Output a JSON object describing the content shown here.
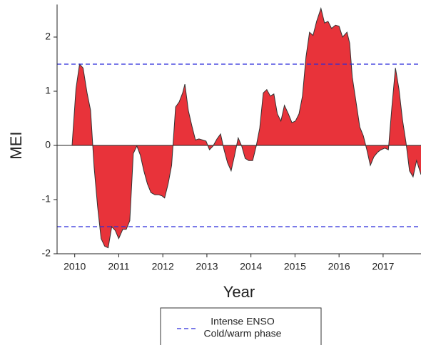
{
  "chart_data": {
    "type": "area",
    "y_label": "MEI",
    "x_label": "Year",
    "xlim": [
      2009.6,
      2017.86
    ],
    "ylim": [
      -2,
      2.6
    ],
    "xticks": [
      2010,
      2011,
      2012,
      2013,
      2014,
      2015,
      2016,
      2017
    ],
    "yticks": [
      -2,
      -1,
      0,
      1,
      2
    ],
    "series": [
      {
        "name": "MEI",
        "color": "#e8333a",
        "x": [
          2009.94,
          2010.03,
          2010.11,
          2010.19,
          2010.28,
          2010.36,
          2010.44,
          2010.52,
          2010.6,
          2010.68,
          2010.76,
          2010.84,
          2010.92,
          2011.0,
          2011.09,
          2011.17,
          2011.25,
          2011.33,
          2011.41,
          2011.49,
          2011.57,
          2011.65,
          2011.73,
          2011.82,
          2011.9,
          2011.98,
          2012.04,
          2012.12,
          2012.2,
          2012.29,
          2012.37,
          2012.45,
          2012.5,
          2012.58,
          2012.66,
          2012.74,
          2012.82,
          2012.9,
          2012.98,
          2013.06,
          2013.14,
          2013.23,
          2013.31,
          2013.39,
          2013.47,
          2013.55,
          2013.63,
          2013.71,
          2013.79,
          2013.87,
          2013.95,
          2014.04,
          2014.12,
          2014.2,
          2014.28,
          2014.36,
          2014.44,
          2014.52,
          2014.6,
          2014.68,
          2014.76,
          2014.85,
          2014.93,
          2015.01,
          2015.09,
          2015.17,
          2015.25,
          2015.33,
          2015.41,
          2015.49,
          2015.59,
          2015.67,
          2015.75,
          2015.83,
          2015.92,
          2016.0,
          2016.08,
          2016.18,
          2016.24,
          2016.3,
          2016.39,
          2016.47,
          2016.55,
          2016.63,
          2016.71,
          2016.79,
          2016.87,
          2016.95,
          2017.04,
          2017.12,
          2017.2,
          2017.28,
          2017.36,
          2017.44,
          2017.52,
          2017.6,
          2017.68,
          2017.76,
          2017.86
        ],
        "values": [
          0,
          1.05,
          1.5,
          1.43,
          0.97,
          0.65,
          -0.4,
          -1.13,
          -1.72,
          -1.86,
          -1.89,
          -1.5,
          -1.57,
          -1.72,
          -1.55,
          -1.55,
          -1.39,
          -0.15,
          -0.01,
          -0.18,
          -0.47,
          -0.71,
          -0.87,
          -0.91,
          -0.91,
          -0.93,
          -0.97,
          -0.71,
          -0.37,
          0.71,
          0.8,
          0.97,
          1.13,
          0.64,
          0.36,
          0.1,
          0.12,
          0.1,
          0.08,
          -0.08,
          -0.01,
          0.12,
          0.21,
          -0.08,
          -0.32,
          -0.47,
          -0.18,
          0.14,
          -0.01,
          -0.24,
          -0.28,
          -0.28,
          -0.01,
          0.32,
          0.97,
          1.03,
          0.91,
          0.95,
          0.58,
          0.45,
          0.74,
          0.58,
          0.42,
          0.45,
          0.58,
          0.91,
          1.63,
          2.09,
          2.03,
          2.29,
          2.53,
          2.26,
          2.29,
          2.16,
          2.22,
          2.2,
          2.0,
          2.09,
          1.89,
          1.26,
          0.78,
          0.34,
          0.18,
          -0.08,
          -0.37,
          -0.21,
          -0.13,
          -0.08,
          -0.05,
          -0.08,
          0.71,
          1.43,
          1.04,
          0.47,
          0.05,
          -0.47,
          -0.58,
          -0.28,
          -0.54
        ]
      }
    ],
    "reference_lines": {
      "label_lines": [
        "Intense ENSO",
        "Cold/warm phase"
      ],
      "values": [
        1.5,
        -1.5
      ],
      "color": "#2b2bd9",
      "dashed": true
    }
  }
}
